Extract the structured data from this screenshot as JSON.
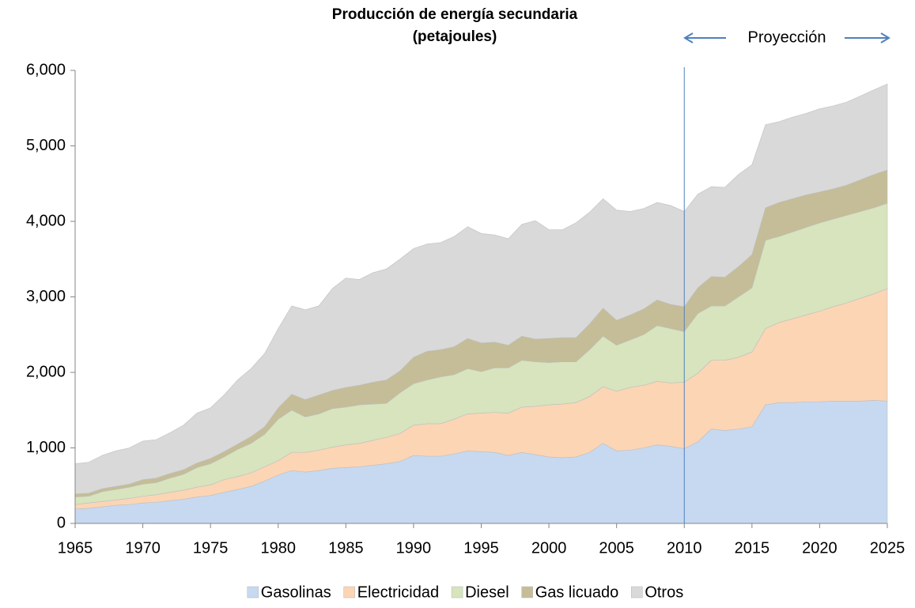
{
  "chart_data": {
    "type": "stacked_area",
    "title": "Producción de energía secundaria",
    "subtitle": "(petajoules)",
    "annotation": "Proyección",
    "reference_x": 2010,
    "reference_color": "#4f81bd",
    "x": [
      1965,
      1966,
      1967,
      1968,
      1969,
      1970,
      1971,
      1972,
      1973,
      1974,
      1975,
      1976,
      1977,
      1978,
      1979,
      1980,
      1981,
      1982,
      1983,
      1984,
      1985,
      1986,
      1987,
      1988,
      1989,
      1990,
      1991,
      1992,
      1993,
      1994,
      1995,
      1996,
      1997,
      1998,
      1999,
      2000,
      2001,
      2002,
      2003,
      2004,
      2005,
      2006,
      2007,
      2008,
      2009,
      2010,
      2011,
      2012,
      2013,
      2014,
      2015,
      2016,
      2017,
      2018,
      2019,
      2020,
      2021,
      2022,
      2023,
      2024,
      2025
    ],
    "xlim": [
      1965,
      2025
    ],
    "xticks": [
      1965,
      1970,
      1975,
      1980,
      1985,
      1990,
      1995,
      2000,
      2005,
      2010,
      2015,
      2020,
      2025
    ],
    "ylim": [
      0,
      6000
    ],
    "yticks": [
      0,
      {
        "value": 1000,
        "label": "1,000"
      },
      {
        "value": 2000,
        "label": "2,000"
      },
      {
        "value": 3000,
        "label": "3,000"
      },
      {
        "value": 4000,
        "label": "4,000"
      },
      {
        "value": 5000,
        "label": "5,000"
      },
      {
        "value": 6000,
        "label": "6,000"
      }
    ],
    "grid": false,
    "legend": "bottom",
    "series": [
      {
        "name": "Gasolinas",
        "color": "#c6d9f1",
        "values": [
          190,
          200,
          220,
          240,
          250,
          270,
          280,
          300,
          320,
          350,
          370,
          410,
          450,
          490,
          560,
          640,
          700,
          680,
          700,
          730,
          740,
          750,
          770,
          790,
          820,
          900,
          890,
          890,
          920,
          960,
          950,
          940,
          900,
          940,
          910,
          880,
          870,
          880,
          940,
          1060,
          960,
          970,
          1000,
          1040,
          1020,
          990,
          1080,
          1250,
          1230,
          1250,
          1280,
          1570,
          1600,
          1600,
          1610,
          1610,
          1620,
          1620,
          1620,
          1630,
          1620
        ]
      },
      {
        "name": "Electricidad",
        "color": "#fcd5b5",
        "values": [
          60,
          70,
          70,
          70,
          80,
          90,
          100,
          110,
          120,
          130,
          140,
          170,
          170,
          180,
          190,
          190,
          240,
          260,
          270,
          280,
          300,
          310,
          330,
          350,
          370,
          400,
          430,
          430,
          460,
          490,
          510,
          530,
          560,
          600,
          640,
          690,
          710,
          720,
          740,
          750,
          790,
          830,
          830,
          840,
          840,
          880,
          910,
          910,
          930,
          950,
          990,
          1010,
          1060,
          1110,
          1150,
          1200,
          1250,
          1300,
          1360,
          1410,
          1490
        ]
      },
      {
        "name": "Diesel",
        "color": "#d7e4bd",
        "values": [
          100,
          90,
          130,
          140,
          150,
          160,
          160,
          190,
          210,
          260,
          280,
          300,
          360,
          390,
          430,
          550,
          560,
          470,
          480,
          510,
          500,
          510,
          480,
          450,
          540,
          550,
          580,
          620,
          590,
          600,
          550,
          590,
          600,
          620,
          590,
          560,
          560,
          540,
          620,
          670,
          610,
          630,
          670,
          740,
          720,
          670,
          790,
          720,
          720,
          800,
          850,
          1170,
          1140,
          1150,
          1160,
          1170,
          1160,
          1160,
          1150,
          1140,
          1130
        ]
      },
      {
        "name": "Gas licuado",
        "color": "#c4bd97",
        "values": [
          40,
          40,
          40,
          40,
          40,
          60,
          60,
          60,
          60,
          60,
          70,
          70,
          70,
          90,
          100,
          150,
          210,
          230,
          250,
          240,
          260,
          260,
          290,
          310,
          290,
          350,
          380,
          360,
          370,
          400,
          380,
          340,
          300,
          320,
          300,
          320,
          320,
          320,
          340,
          370,
          330,
          330,
          340,
          340,
          320,
          330,
          340,
          390,
          380,
          400,
          440,
          430,
          450,
          440,
          430,
          410,
          400,
          400,
          420,
          440,
          440
        ]
      },
      {
        "name": "Otros",
        "color": "#d9d9d9",
        "values": [
          400,
          410,
          440,
          470,
          480,
          510,
          510,
          540,
          590,
          660,
          670,
          750,
          850,
          900,
          970,
          1050,
          1170,
          1190,
          1180,
          1350,
          1450,
          1400,
          1450,
          1470,
          1480,
          1440,
          1420,
          1420,
          1460,
          1480,
          1450,
          1420,
          1410,
          1480,
          1570,
          1440,
          1430,
          1520,
          1480,
          1450,
          1460,
          1370,
          1330,
          1290,
          1310,
          1260,
          1240,
          1190,
          1190,
          1220,
          1190,
          1100,
          1070,
          1080,
          1080,
          1100,
          1100,
          1100,
          1110,
          1120,
          1140
        ]
      }
    ]
  }
}
